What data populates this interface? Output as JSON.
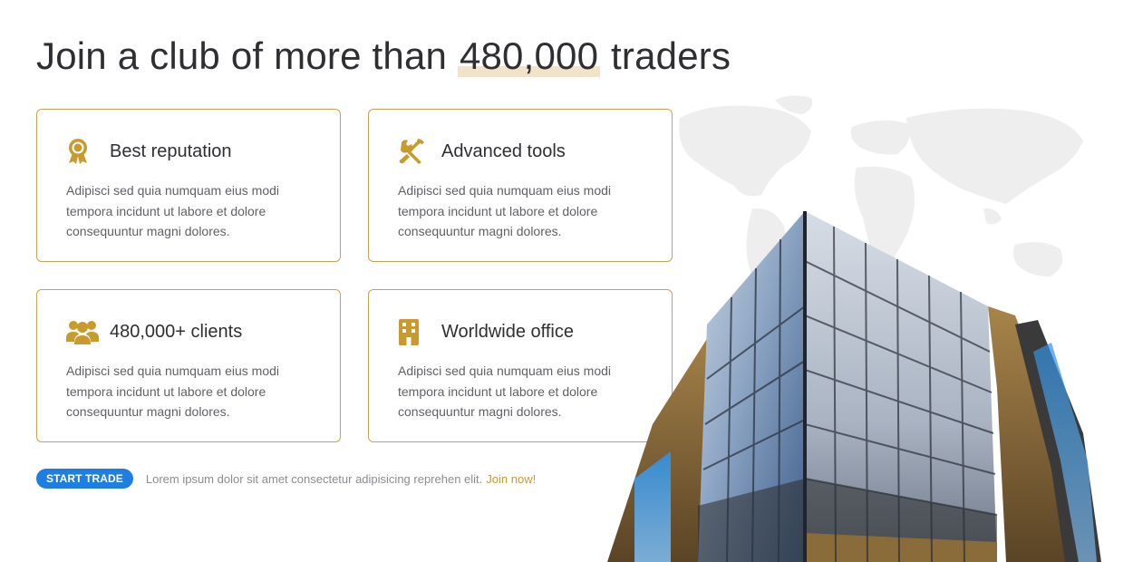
{
  "header": {
    "title_prefix": "Join a club of more than ",
    "title_highlight": "480,000",
    "title_suffix": " traders"
  },
  "features": [
    {
      "icon": "award-ribbon-icon",
      "title": "Best reputation",
      "text": "Adipisci sed quia numquam eius modi tempora incidunt ut labore et dolore consequuntur magni dolores."
    },
    {
      "icon": "tools-icon",
      "title": "Advanced tools",
      "text": "Adipisci sed quia numquam eius modi tempora incidunt ut labore et dolore consequuntur magni dolores."
    },
    {
      "icon": "users-group-icon",
      "title": "480,000+ clients",
      "text": "Adipisci sed quia numquam eius modi tempora incidunt ut labore et dolore consequuntur magni dolores."
    },
    {
      "icon": "office-building-icon",
      "title": "Worldwide office",
      "text": "Adipisci sed quia numquam eius modi tempora incidunt ut labore et dolore consequuntur magni dolores."
    }
  ],
  "cta": {
    "button_label": "START TRADE",
    "text": "Lorem ipsum dolor sit amet consectetur adipisicing reprehen elit.",
    "link_label": "Join now!"
  },
  "colors": {
    "accent_gold": "#c99a2e",
    "card_border": "#caa24f",
    "button_blue": "#1e7fe0",
    "heading": "#2f2f33",
    "body_text": "#5f6166"
  }
}
